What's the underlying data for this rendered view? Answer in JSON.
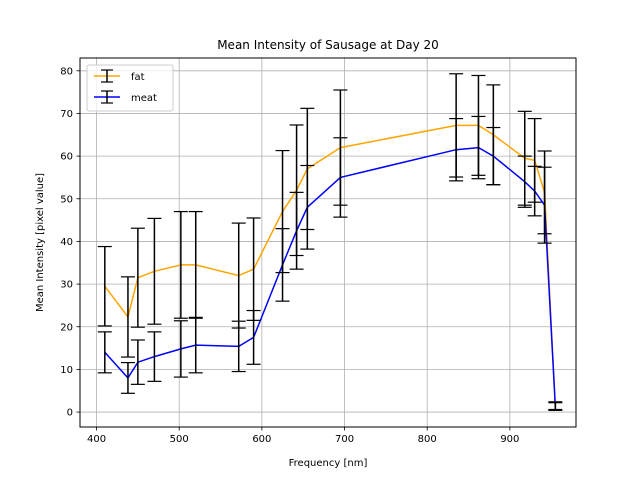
{
  "chart_data": {
    "type": "line",
    "title": "Mean Intensity of Sausage at Day 20",
    "xlabel": "Frequency [nm]",
    "ylabel": "Mean Intensity [pixel value]",
    "xlim": [
      380,
      980
    ],
    "ylim": [
      -3.5,
      83
    ],
    "xticks": [
      400,
      500,
      600,
      700,
      800,
      900
    ],
    "yticks": [
      0,
      10,
      20,
      30,
      40,
      50,
      60,
      70,
      80
    ],
    "grid": true,
    "legend_position": "upper-left",
    "x": [
      410,
      438,
      450,
      470,
      502,
      520,
      572,
      590,
      625,
      642,
      655,
      695,
      835,
      862,
      880,
      918,
      930,
      942,
      955
    ],
    "series": [
      {
        "name": "fat",
        "color": "#FFA500",
        "values": [
          29.5,
          22.3,
          31.5,
          33.0,
          34.5,
          34.5,
          32.0,
          33.5,
          47.0,
          52.0,
          57.0,
          62.0,
          67.2,
          67.2,
          65.0,
          59.5,
          59.0,
          51.5,
          1.3
        ],
        "errors": [
          9.3,
          9.4,
          11.6,
          12.4,
          12.5,
          12.5,
          12.3,
          12.0,
          14.3,
          15.3,
          14.2,
          13.5,
          12.1,
          11.7,
          11.7,
          11.0,
          9.8,
          9.7,
          0.9
        ]
      },
      {
        "name": "meat",
        "color": "#0000FF",
        "values": [
          14.0,
          8.0,
          11.7,
          13.0,
          14.8,
          15.7,
          15.4,
          17.5,
          34.5,
          42.5,
          48.0,
          55.0,
          61.5,
          62.0,
          60.0,
          54.0,
          51.8,
          48.5,
          1.5
        ],
        "errors": [
          4.8,
          3.6,
          5.2,
          5.8,
          6.6,
          6.5,
          5.9,
          6.3,
          8.5,
          9.0,
          9.8,
          9.3,
          7.3,
          7.3,
          6.7,
          6.0,
          5.8,
          8.9,
          0.9
        ]
      }
    ]
  }
}
